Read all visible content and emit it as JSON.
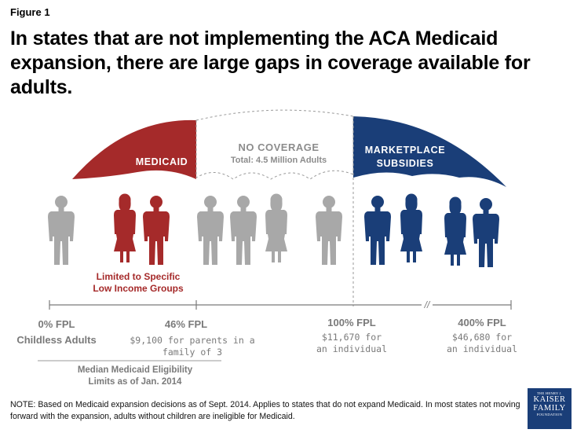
{
  "header": {
    "figure_label": "Figure 1",
    "title": "In states that are not implementing the ACA Medicaid expansion, there are large gaps in coverage available for adults."
  },
  "umbrellas": {
    "medicaid": {
      "label": "MEDICAID",
      "color": "#a52a2a"
    },
    "no_coverage": {
      "label": "NO COVERAGE",
      "sublabel": "Total: 4.5 Million Adults",
      "color": "#8c8c8c"
    },
    "marketplace": {
      "label_line1": "MARKETPLACE",
      "label_line2": "SUBSIDIES",
      "color": "#1a3e78"
    }
  },
  "people_groups": {
    "gray_color": "#a8a8a8",
    "red_color": "#a52a2a",
    "blue_color": "#1a3e78"
  },
  "limited_note": {
    "line1": "Limited to Specific",
    "line2": "Low Income Groups"
  },
  "axis": {
    "break_symbol": "//",
    "ticks": [
      {
        "fpl": "0% FPL",
        "desc1": "Childless Adults",
        "desc2": ""
      },
      {
        "fpl": "46% FPL",
        "desc1": "$9,100 for parents in a",
        "desc2": "family of 3"
      },
      {
        "fpl": "100% FPL",
        "desc1": "$11,670 for",
        "desc2": "an individual"
      },
      {
        "fpl": "400% FPL",
        "desc1": "$46,680 for",
        "desc2": "an individual"
      }
    ]
  },
  "median_note": {
    "line1": "Median Medicaid Eligibility",
    "line2": "Limits as of Jan. 2014"
  },
  "footer": {
    "note": "NOTE: Based on Medicaid expansion decisions as of Sept. 2014. Applies to states that do not expand Medicaid.  In most states not moving forward with the expansion, adults without children are ineligible for Medicaid.",
    "logo_line1": "THE HENRY J.",
    "logo_line2": "KAISER",
    "logo_line3": "FAMILY",
    "logo_line4": "FOUNDATION"
  }
}
